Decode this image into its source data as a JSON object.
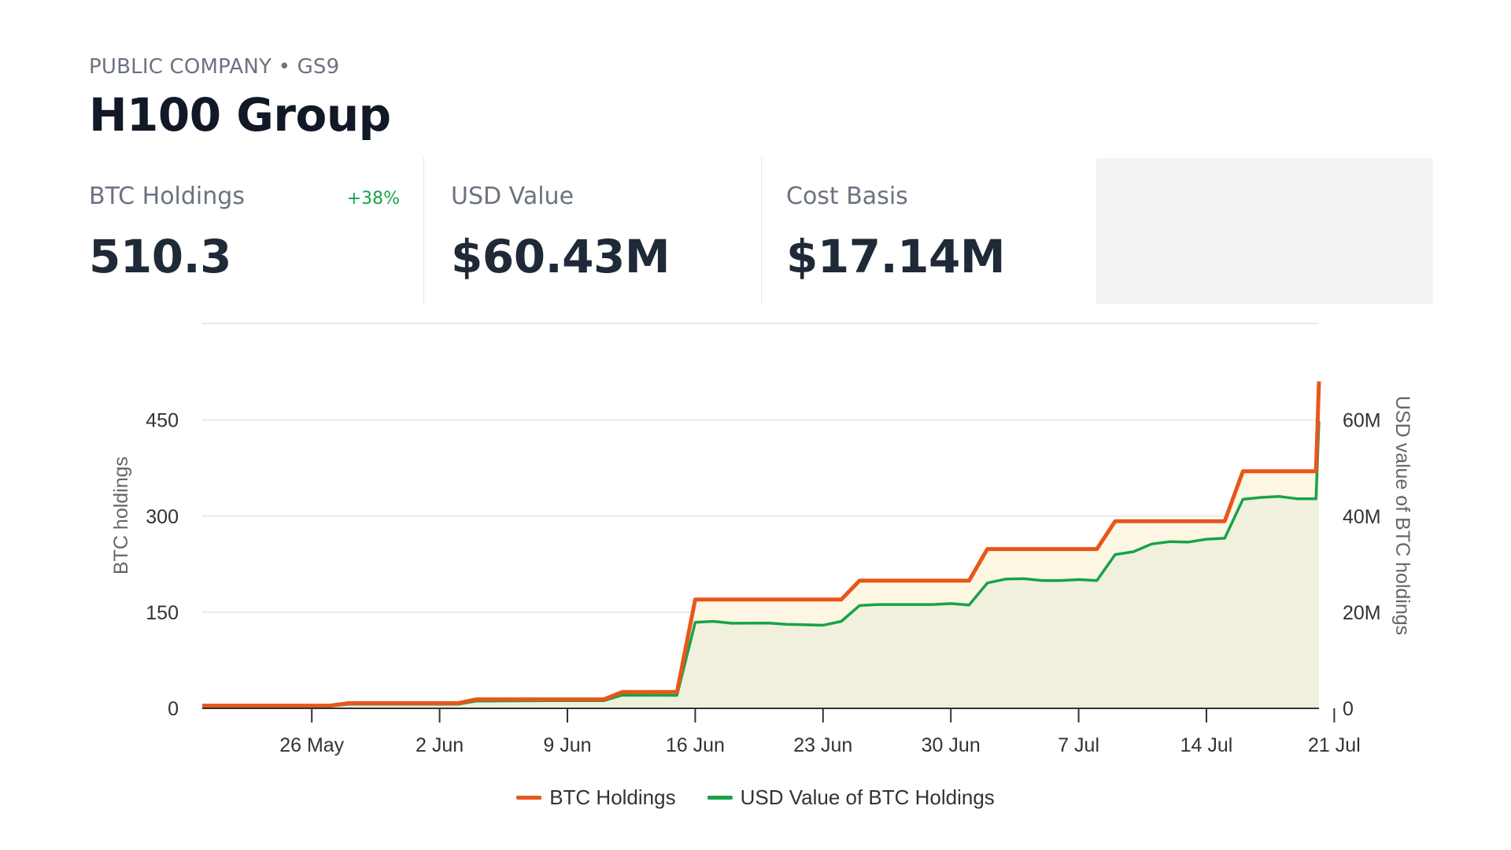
{
  "header": {
    "subtitle": "PUBLIC COMPANY • GS9",
    "title": "H100 Group"
  },
  "stats": {
    "btc_holdings": {
      "label": "BTC Holdings",
      "value": "510.3",
      "change": "+38%"
    },
    "usd_value": {
      "label": "USD Value",
      "value": "$60.43M"
    },
    "cost_basis": {
      "label": "Cost Basis",
      "value": "$17.14M"
    }
  },
  "colors": {
    "btc": "#e8561a",
    "usd": "#16a34a",
    "btc_fill": "#fdf6e3",
    "usd_fill": "#f1f0dd",
    "grid": "#dddddd",
    "change_positive": "#16a34a"
  },
  "chart_data": {
    "type": "line",
    "ylabel": "BTC holdings",
    "y2label": "USD value of BTC holdings",
    "ylim": [
      0,
      610
    ],
    "y2lim": [
      0,
      80000000
    ],
    "yticks": [
      0,
      150,
      300,
      450
    ],
    "y2ticks": [
      0,
      20000000,
      40000000,
      60000000
    ],
    "y2tick_labels": [
      "0",
      "20M",
      "40M",
      "60M"
    ],
    "xlim": [
      "2025-05-20",
      "2025-07-21"
    ],
    "xticks": [
      "2025-05-26",
      "2025-06-02",
      "2025-06-09",
      "2025-06-16",
      "2025-06-23",
      "2025-06-30",
      "2025-07-07",
      "2025-07-14",
      "2025-07-21"
    ],
    "xtick_labels": [
      "26 May",
      "2 Jun",
      "9 Jun",
      "16 Jun",
      "23 Jun",
      "30 Jun",
      "7 Jul",
      "14 Jul",
      "21 Jul"
    ],
    "grid": true,
    "legend_position": "bottom",
    "series": [
      {
        "name": "BTC Holdings",
        "axis": "left",
        "color": "#e8561a",
        "points": [
          [
            "2025-05-20",
            4.2
          ],
          [
            "2025-05-27",
            4.2
          ],
          [
            "2025-05-28",
            8
          ],
          [
            "2025-06-01",
            8
          ],
          [
            "2025-06-02",
            8
          ],
          [
            "2025-06-03",
            8
          ],
          [
            "2025-06-04",
            14
          ],
          [
            "2025-06-11",
            14
          ],
          [
            "2025-06-12",
            25.4
          ],
          [
            "2025-06-15",
            25.4
          ],
          [
            "2025-06-16",
            169.9
          ],
          [
            "2025-06-24",
            169.9
          ],
          [
            "2025-06-25",
            199.3
          ],
          [
            "2025-07-01",
            199.3
          ],
          [
            "2025-07-02",
            248.7
          ],
          [
            "2025-07-08",
            248.7
          ],
          [
            "2025-07-09",
            292.1
          ],
          [
            "2025-07-15",
            292.1
          ],
          [
            "2025-07-16",
            370.2
          ],
          [
            "2025-07-20",
            370.2
          ],
          [
            "2025-07-21",
            510.3
          ],
          [
            "2025-07-22",
            510.3
          ]
        ]
      },
      {
        "name": "USD Value of BTC Holdings",
        "axis": "right",
        "color": "#16a34a",
        "points": [
          [
            "2025-05-20",
            450000
          ],
          [
            "2025-05-27",
            450000
          ],
          [
            "2025-05-28",
            850000
          ],
          [
            "2025-06-03",
            850000
          ],
          [
            "2025-06-04",
            1500000
          ],
          [
            "2025-06-06",
            1550000
          ],
          [
            "2025-06-08",
            1600000
          ],
          [
            "2025-06-11",
            1600000
          ],
          [
            "2025-06-12",
            2750000
          ],
          [
            "2025-06-15",
            2700000
          ],
          [
            "2025-06-16",
            17900000
          ],
          [
            "2025-06-17",
            18100000
          ],
          [
            "2025-06-18",
            17700000
          ],
          [
            "2025-06-20",
            17750000
          ],
          [
            "2025-06-21",
            17500000
          ],
          [
            "2025-06-23",
            17300000
          ],
          [
            "2025-06-24",
            18100000
          ],
          [
            "2025-06-25",
            21400000
          ],
          [
            "2025-06-26",
            21600000
          ],
          [
            "2025-06-29",
            21600000
          ],
          [
            "2025-06-30",
            21800000
          ],
          [
            "2025-07-01",
            21500000
          ],
          [
            "2025-07-02",
            26100000
          ],
          [
            "2025-07-03",
            26900000
          ],
          [
            "2025-07-04",
            27000000
          ],
          [
            "2025-07-05",
            26600000
          ],
          [
            "2025-07-06",
            26600000
          ],
          [
            "2025-07-07",
            26800000
          ],
          [
            "2025-07-08",
            26600000
          ],
          [
            "2025-07-09",
            32000000
          ],
          [
            "2025-07-10",
            32600000
          ],
          [
            "2025-07-11",
            34200000
          ],
          [
            "2025-07-12",
            34700000
          ],
          [
            "2025-07-13",
            34600000
          ],
          [
            "2025-07-14",
            35200000
          ],
          [
            "2025-07-15",
            35400000
          ],
          [
            "2025-07-16",
            43500000
          ],
          [
            "2025-07-17",
            43900000
          ],
          [
            "2025-07-18",
            44100000
          ],
          [
            "2025-07-19",
            43600000
          ],
          [
            "2025-07-20",
            43600000
          ],
          [
            "2025-07-21",
            59800000
          ],
          [
            "2025-07-22",
            59800000
          ]
        ]
      }
    ]
  }
}
